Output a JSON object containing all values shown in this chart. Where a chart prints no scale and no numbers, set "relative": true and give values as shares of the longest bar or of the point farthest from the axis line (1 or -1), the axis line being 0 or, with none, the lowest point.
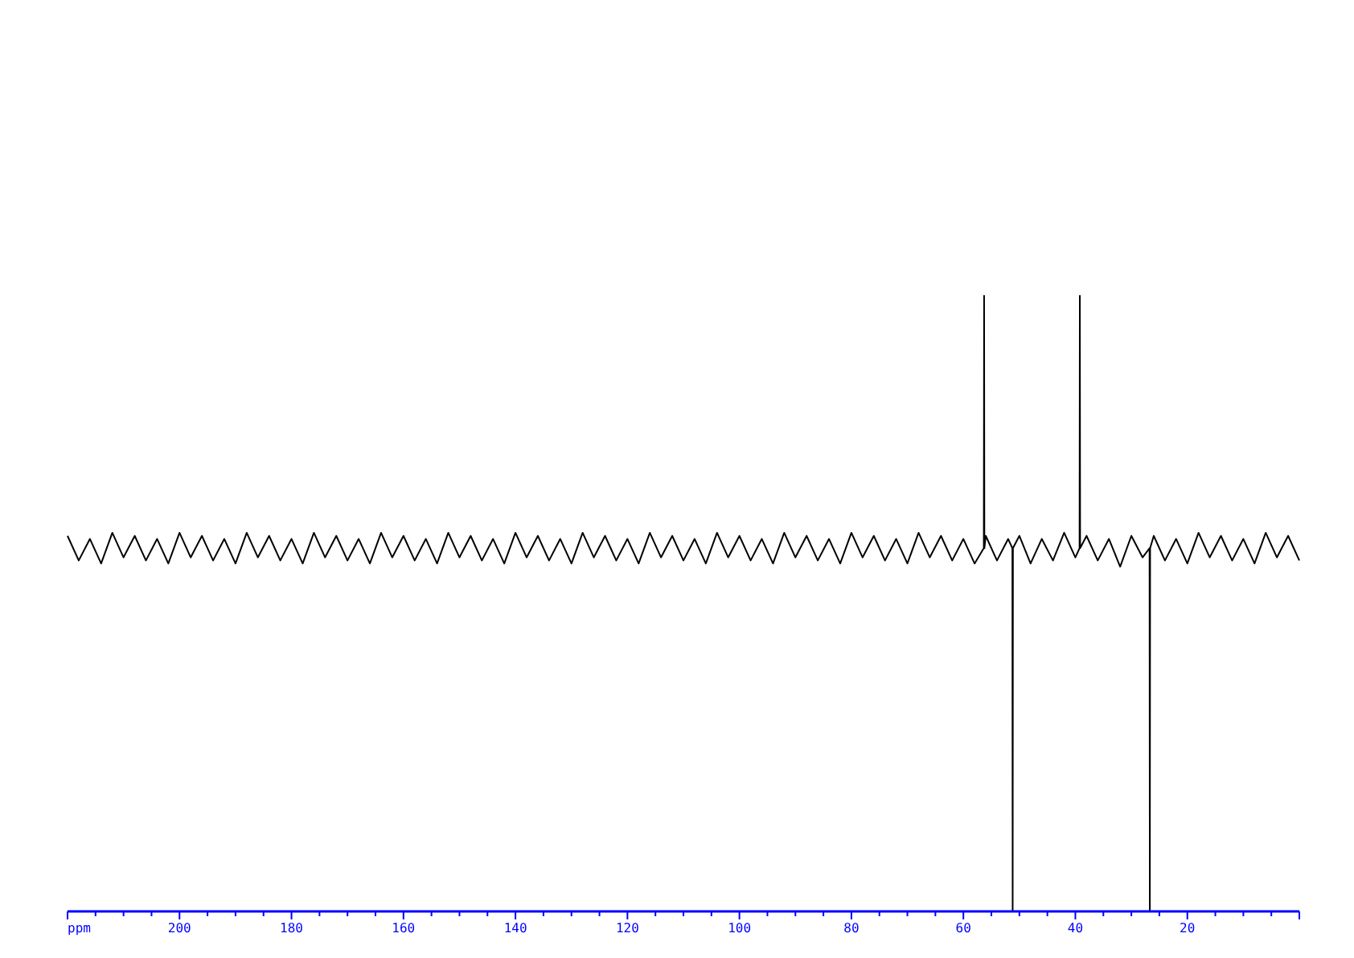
{
  "chart_data": {
    "type": "line",
    "relative": true,
    "xlabel": "ppm",
    "xlim": [
      220,
      0
    ],
    "xticks": [
      {
        "value": 220,
        "label": null
      },
      {
        "value": 215,
        "label": null
      },
      {
        "value": 210,
        "label": null
      },
      {
        "value": 205,
        "label": null
      },
      200,
      {
        "value": 195,
        "label": null
      },
      {
        "value": 190,
        "label": null
      },
      {
        "value": 185,
        "label": null
      },
      180,
      {
        "value": 175,
        "label": null
      },
      {
        "value": 170,
        "label": null
      },
      {
        "value": 165,
        "label": null
      },
      160,
      {
        "value": 155,
        "label": null
      },
      {
        "value": 150,
        "label": null
      },
      {
        "value": 145,
        "label": null
      },
      140,
      {
        "value": 135,
        "label": null
      },
      {
        "value": 130,
        "label": null
      },
      {
        "value": 125,
        "label": null
      },
      120,
      {
        "value": 115,
        "label": null
      },
      {
        "value": 110,
        "label": null
      },
      {
        "value": 105,
        "label": null
      },
      100,
      {
        "value": 95,
        "label": null
      },
      {
        "value": 90,
        "label": null
      },
      {
        "value": 85,
        "label": null
      },
      80,
      {
        "value": 75,
        "label": null
      },
      {
        "value": 70,
        "label": null
      },
      {
        "value": 65,
        "label": null
      },
      60,
      {
        "value": 55,
        "label": null
      },
      {
        "value": 50,
        "label": null
      },
      {
        "value": 45,
        "label": null
      },
      40,
      {
        "value": 35,
        "label": null
      },
      {
        "value": 30,
        "label": null
      },
      {
        "value": 25,
        "label": null
      },
      20,
      {
        "value": 15,
        "label": null
      },
      {
        "value": 10,
        "label": null
      },
      {
        "value": 5,
        "label": null
      },
      {
        "value": 0,
        "label": null
      }
    ],
    "grid": false,
    "line_style": "solid",
    "series": [
      {
        "color": "#000000",
        "x": [
          220,
          218,
          216,
          214,
          212,
          210,
          208,
          206,
          204,
          202,
          200,
          198,
          196,
          194,
          192,
          190,
          188,
          186,
          184,
          182,
          180,
          178,
          176,
          174,
          172,
          170,
          168,
          166,
          164,
          162,
          160,
          158,
          156,
          154,
          152,
          150,
          148,
          146,
          144,
          142,
          140,
          138,
          136,
          134,
          132,
          130,
          128,
          126,
          124,
          122,
          120,
          118,
          116,
          114,
          112,
          110,
          108,
          106,
          104,
          102,
          100,
          98,
          96,
          94,
          92,
          90,
          88,
          86,
          84,
          82,
          80,
          78,
          76,
          74,
          72,
          70,
          68,
          66,
          64,
          62,
          60,
          58,
          56.35,
          56.3,
          56.25,
          56,
          54,
          52,
          51.25,
          51.2,
          51.15,
          50,
          48,
          46,
          44,
          42,
          40,
          39.25,
          39.2,
          39.15,
          38,
          36,
          34,
          32,
          30,
          28,
          26.75,
          26.7,
          26.65,
          26,
          24,
          22,
          20,
          18,
          16,
          14,
          12,
          10,
          8,
          6,
          4,
          2,
          0
        ],
        "values": [
          0.61,
          0.57,
          0.605,
          0.565,
          0.615,
          0.575,
          0.61,
          0.57,
          0.605,
          0.565,
          0.615,
          0.575,
          0.61,
          0.57,
          0.605,
          0.565,
          0.615,
          0.575,
          0.61,
          0.57,
          0.605,
          0.565,
          0.615,
          0.575,
          0.61,
          0.57,
          0.605,
          0.565,
          0.615,
          0.575,
          0.61,
          0.57,
          0.605,
          0.565,
          0.615,
          0.575,
          0.61,
          0.57,
          0.605,
          0.565,
          0.615,
          0.575,
          0.61,
          0.57,
          0.605,
          0.565,
          0.615,
          0.575,
          0.61,
          0.57,
          0.605,
          0.565,
          0.615,
          0.575,
          0.61,
          0.57,
          0.605,
          0.565,
          0.615,
          0.575,
          0.61,
          0.57,
          0.605,
          0.565,
          0.615,
          0.575,
          0.61,
          0.57,
          0.605,
          0.565,
          0.615,
          0.575,
          0.61,
          0.57,
          0.605,
          0.565,
          0.615,
          0.575,
          0.61,
          0.57,
          0.605,
          0.565,
          0.59,
          1,
          0.59,
          0.61,
          0.57,
          0.605,
          0.59,
          0,
          0.59,
          0.61,
          0.565,
          0.605,
          0.57,
          0.615,
          0.575,
          0.59,
          1,
          0.59,
          0.61,
          0.57,
          0.605,
          0.56,
          0.61,
          0.575,
          0.59,
          0,
          0.59,
          0.61,
          0.57,
          0.605,
          0.565,
          0.615,
          0.575,
          0.61,
          0.57,
          0.605,
          0.565,
          0.615,
          0.575,
          0.61,
          0.57
        ]
      }
    ]
  }
}
